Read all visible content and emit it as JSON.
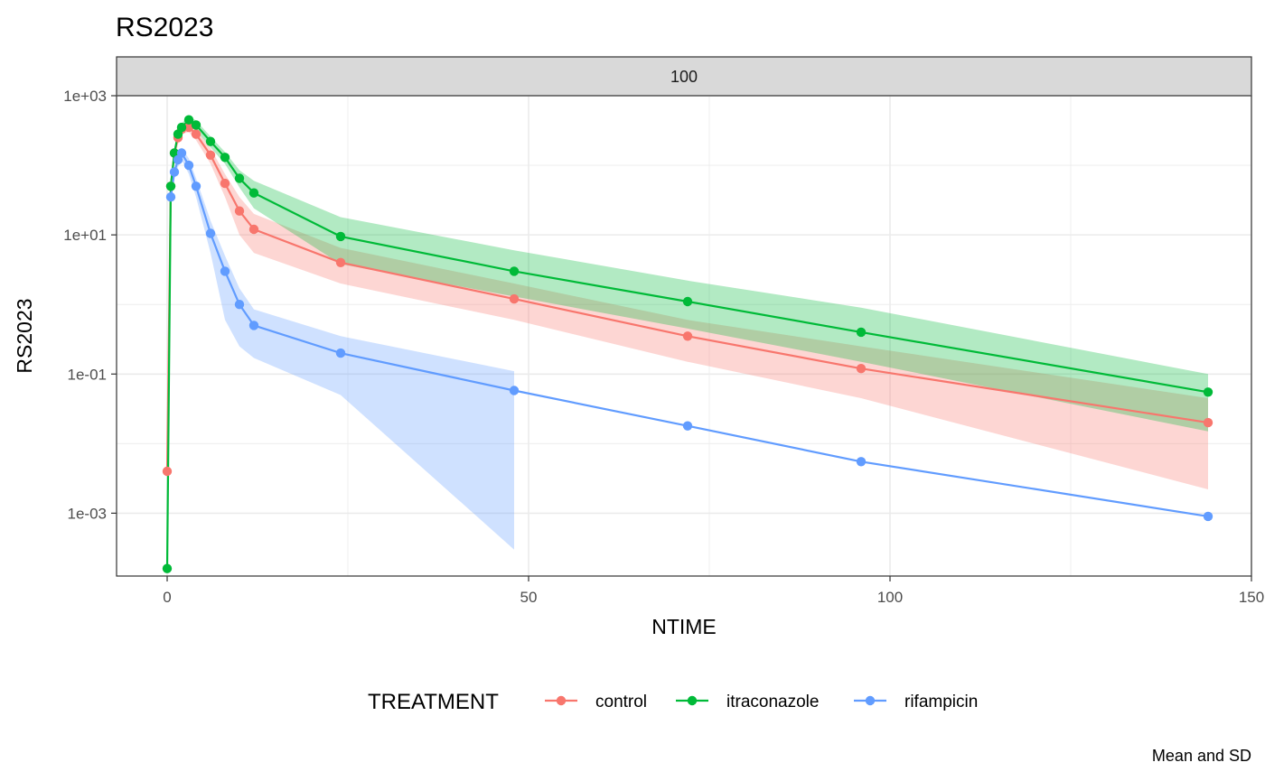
{
  "chart_data": {
    "type": "line",
    "title": "RS2023",
    "facet_label": "100",
    "xlabel": "NTIME",
    "ylabel": "RS2023",
    "caption": "Mean and SD",
    "y_scale": "log10",
    "xlim": [
      -7,
      150
    ],
    "ylim": [
      0.000125,
      1000
    ],
    "x_ticks": [
      0,
      50,
      100,
      150
    ],
    "x_tick_labels": [
      "0",
      "50",
      "100",
      "150"
    ],
    "y_ticks": [
      0.001,
      0.1,
      10,
      1000
    ],
    "y_tick_labels": [
      "1e-03",
      "1e-01",
      "1e+01",
      "1e+03"
    ],
    "grid": true,
    "legend": {
      "title": "TREATMENT",
      "position": "bottom"
    },
    "series": [
      {
        "name": "control",
        "color": "#F8766D",
        "x": [
          0,
          0.5,
          1,
          1.5,
          2,
          3,
          4,
          6,
          8,
          10,
          12,
          24,
          48,
          72,
          96,
          144
        ],
        "y": [
          0.004,
          50,
          150,
          250,
          330,
          350,
          280,
          140,
          55,
          22,
          12,
          4,
          1.2,
          0.35,
          0.12,
          0.02
        ],
        "lower": [
          null,
          40,
          120,
          200,
          280,
          300,
          230,
          105,
          35,
          10,
          5.5,
          2.0,
          0.6,
          0.15,
          0.045,
          0.0022
        ],
        "upper": [
          null,
          60,
          180,
          300,
          380,
          400,
          330,
          175,
          75,
          35,
          20,
          6.5,
          2.0,
          0.6,
          0.25,
          0.045
        ],
        "band_from": 1
      },
      {
        "name": "itraconazole",
        "color": "#00BA38",
        "x": [
          0,
          0.5,
          1,
          1.5,
          2,
          3,
          4,
          6,
          8,
          10,
          12,
          24,
          48,
          72,
          96,
          144
        ],
        "y": [
          0.00016,
          50,
          150,
          280,
          350,
          450,
          380,
          220,
          130,
          65,
          40,
          9.5,
          3.0,
          1.1,
          0.4,
          0.055
        ],
        "lower": [
          null,
          42,
          125,
          230,
          300,
          380,
          320,
          180,
          105,
          48,
          24,
          3.8,
          1.3,
          0.45,
          0.15,
          0.015
        ],
        "upper": [
          null,
          58,
          175,
          330,
          400,
          520,
          440,
          260,
          155,
          85,
          60,
          18,
          6.0,
          2.2,
          0.9,
          0.1
        ],
        "band_from": 1
      },
      {
        "name": "rifampicin",
        "color": "#619CFF",
        "x": [
          0.5,
          1,
          1.5,
          2,
          3,
          4,
          6,
          8,
          10,
          12,
          24,
          48,
          72,
          96,
          144
        ],
        "y": [
          35,
          80,
          120,
          150,
          100,
          50,
          10.5,
          3.0,
          1.0,
          0.5,
          0.2,
          0.058,
          0.018,
          0.0055,
          0.0009
        ],
        "lower": [
          28,
          65,
          95,
          120,
          75,
          35,
          5.5,
          0.6,
          0.25,
          0.17,
          0.05,
          0.0003,
          null,
          null,
          null
        ],
        "upper": [
          42,
          95,
          145,
          180,
          125,
          65,
          16,
          5.0,
          1.7,
          0.85,
          0.35,
          0.11,
          null,
          null,
          null
        ],
        "band_from": 0,
        "band_to": 11
      }
    ]
  }
}
